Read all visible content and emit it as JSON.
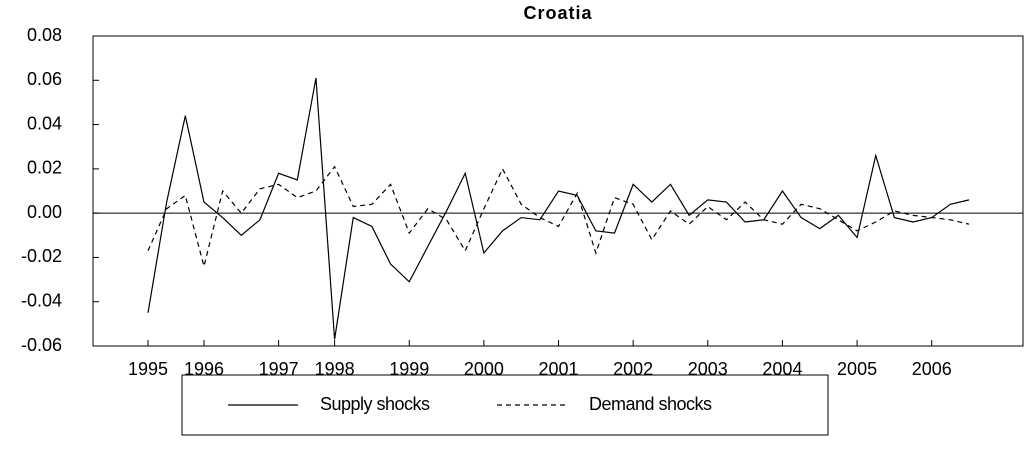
{
  "chart_data": {
    "type": "line",
    "title": "Croatia",
    "categories": [
      "1995",
      null,
      null,
      "1996",
      null,
      null,
      null,
      "1997",
      null,
      null,
      "1998",
      null,
      null,
      null,
      "1999",
      null,
      null,
      null,
      "2000",
      null,
      null,
      null,
      "2001",
      null,
      null,
      null,
      "2002",
      null,
      null,
      null,
      "2003",
      null,
      null,
      null,
      "2004",
      null,
      null,
      null,
      "2005",
      null,
      null,
      null,
      "2006",
      null,
      null
    ],
    "series": [
      {
        "name": "Supply shocks",
        "color": "#000000",
        "dash": "solid",
        "values": [
          -0.045,
          0.005,
          0.044,
          0.005,
          -0.002,
          -0.01,
          -0.003,
          0.018,
          0.015,
          0.061,
          -0.057,
          -0.002,
          -0.006,
          -0.023,
          -0.031,
          -0.015,
          0.001,
          0.018,
          -0.018,
          -0.008,
          -0.002,
          -0.003,
          0.01,
          0.008,
          -0.008,
          -0.009,
          0.013,
          0.005,
          0.013,
          -0.001,
          0.006,
          0.005,
          -0.004,
          -0.003,
          0.01,
          -0.002,
          -0.007,
          -0.001,
          -0.011,
          0.026,
          -0.002,
          -0.004,
          -0.002,
          0.004,
          0.006
        ]
      },
      {
        "name": "Demand shocks",
        "color": "#000000",
        "dash": "dashed",
        "values": [
          -0.017,
          0.002,
          0.008,
          -0.024,
          0.01,
          0.0,
          0.011,
          0.013,
          0.007,
          0.01,
          0.021,
          0.003,
          0.004,
          0.013,
          -0.009,
          0.002,
          -0.003,
          -0.017,
          0.002,
          0.02,
          0.004,
          -0.002,
          -0.006,
          0.009,
          -0.018,
          0.007,
          0.004,
          -0.012,
          0.001,
          -0.005,
          0.003,
          -0.003,
          0.005,
          -0.003,
          -0.005,
          0.004,
          0.002,
          -0.003,
          -0.008,
          -0.004,
          0.001,
          -0.001,
          -0.002,
          -0.003,
          -0.005
        ]
      }
    ],
    "ylim": [
      -0.06,
      0.08
    ],
    "yticks": [
      {
        "value": -0.06,
        "label": "-0.06"
      },
      {
        "value": -0.04,
        "label": "-0.04"
      },
      {
        "value": -0.02,
        "label": "-0.02"
      },
      {
        "value": 0,
        "label": "0.00"
      },
      {
        "value": 0.02,
        "label": "0.02"
      },
      {
        "value": 0.04,
        "label": "0.04"
      },
      {
        "value": 0.06,
        "label": "0.06"
      },
      {
        "value": 0.08,
        "label": "0.08"
      }
    ],
    "zero_line": true,
    "legend": "bottom"
  }
}
